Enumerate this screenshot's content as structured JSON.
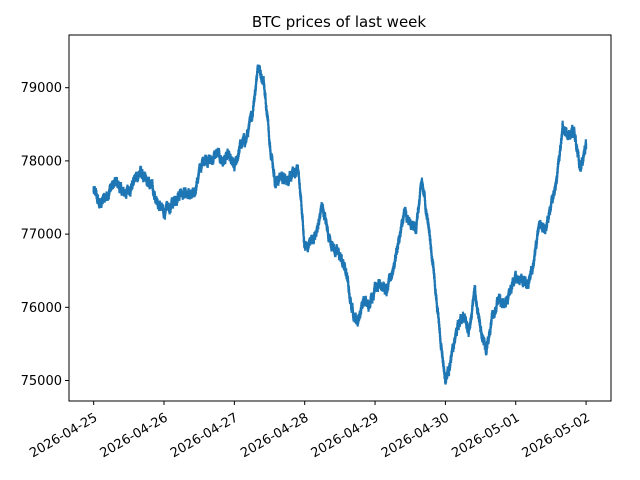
{
  "chart_data": {
    "type": "scatter",
    "title": "BTC prices of last week",
    "xlabel": "",
    "ylabel": "",
    "xlim": [
      "2026-04-24T15:35",
      "2026-05-02T08:30"
    ],
    "ylim": [
      74720,
      79720
    ],
    "x_ticks": [
      "2026-04-25",
      "2026-04-26",
      "2026-04-27",
      "2026-04-28",
      "2026-04-29",
      "2026-04-30",
      "2026-05-01",
      "2026-05-02"
    ],
    "y_ticks": [
      75000,
      76000,
      77000,
      78000,
      79000
    ],
    "grid": false,
    "legend": "none",
    "color": "#1f77b4",
    "series": [
      {
        "x": [
          "2026-04-25T00:00",
          "2026-04-25T02:00",
          "2026-04-25T04:00",
          "2026-04-25T06:00",
          "2026-04-25T08:00",
          "2026-04-25T10:00",
          "2026-04-25T12:00",
          "2026-04-25T14:00",
          "2026-04-25T16:00",
          "2026-04-25T18:00",
          "2026-04-25T20:00",
          "2026-04-25T22:00",
          "2026-04-26T00:00",
          "2026-04-26T02:00",
          "2026-04-26T04:00",
          "2026-04-26T06:00",
          "2026-04-26T08:00",
          "2026-04-26T10:00",
          "2026-04-26T12:00",
          "2026-04-26T14:00",
          "2026-04-26T16:00",
          "2026-04-26T18:00",
          "2026-04-26T20:00",
          "2026-04-26T22:00",
          "2026-04-27T00:00",
          "2026-04-27T02:00",
          "2026-04-27T04:00",
          "2026-04-27T06:00",
          "2026-04-27T08:00",
          "2026-04-27T10:00",
          "2026-04-27T12:00",
          "2026-04-27T14:00",
          "2026-04-27T16:00",
          "2026-04-27T18:00",
          "2026-04-27T20:00",
          "2026-04-27T22:00",
          "2026-04-28T00:00",
          "2026-04-28T02:00",
          "2026-04-28T04:00",
          "2026-04-28T06:00",
          "2026-04-28T08:00",
          "2026-04-28T10:00",
          "2026-04-28T12:00",
          "2026-04-28T14:00",
          "2026-04-28T16:00",
          "2026-04-28T18:00",
          "2026-04-28T20:00",
          "2026-04-28T22:00",
          "2026-04-29T00:00",
          "2026-04-29T02:00",
          "2026-04-29T04:00",
          "2026-04-29T06:00",
          "2026-04-29T08:00",
          "2026-04-29T10:00",
          "2026-04-29T12:00",
          "2026-04-29T14:00",
          "2026-04-29T16:00",
          "2026-04-29T18:00",
          "2026-04-29T20:00",
          "2026-04-29T22:00",
          "2026-04-30T00:00",
          "2026-04-30T02:00",
          "2026-04-30T04:00",
          "2026-04-30T06:00",
          "2026-04-30T08:00",
          "2026-04-30T10:00",
          "2026-04-30T12:00",
          "2026-04-30T14:00",
          "2026-04-30T16:00",
          "2026-04-30T18:00",
          "2026-04-30T20:00",
          "2026-04-30T22:00",
          "2026-05-01T00:00",
          "2026-05-01T02:00",
          "2026-05-01T04:00",
          "2026-05-01T06:00",
          "2026-05-01T08:00",
          "2026-05-01T10:00",
          "2026-05-01T12:00",
          "2026-05-01T14:00",
          "2026-05-01T16:00",
          "2026-05-01T18:00",
          "2026-05-01T20:00",
          "2026-05-01T22:00",
          "2026-05-02T00:00"
        ],
        "y": [
          77600,
          77400,
          77500,
          77650,
          77700,
          77550,
          77600,
          77750,
          77850,
          77700,
          77650,
          77400,
          77300,
          77350,
          77500,
          77600,
          77550,
          77500,
          77850,
          78050,
          78000,
          78100,
          78000,
          78050,
          77900,
          78200,
          78300,
          78600,
          79300,
          79100,
          78300,
          77700,
          77800,
          77700,
          77900,
          77800,
          76800,
          76900,
          77000,
          77400,
          77000,
          76800,
          76700,
          76500,
          76000,
          75800,
          76100,
          76000,
          76300,
          76350,
          76200,
          76500,
          76900,
          77300,
          77100,
          77100,
          77700,
          77200,
          76500,
          75700,
          75000,
          75300,
          75700,
          75900,
          75700,
          76200,
          75700,
          75400,
          75900,
          76100,
          76000,
          76200,
          76400,
          76400,
          76300,
          76600,
          77100,
          77100,
          77400,
          77700,
          78500,
          78300,
          78400,
          77900,
          78200
        ]
      }
    ]
  }
}
